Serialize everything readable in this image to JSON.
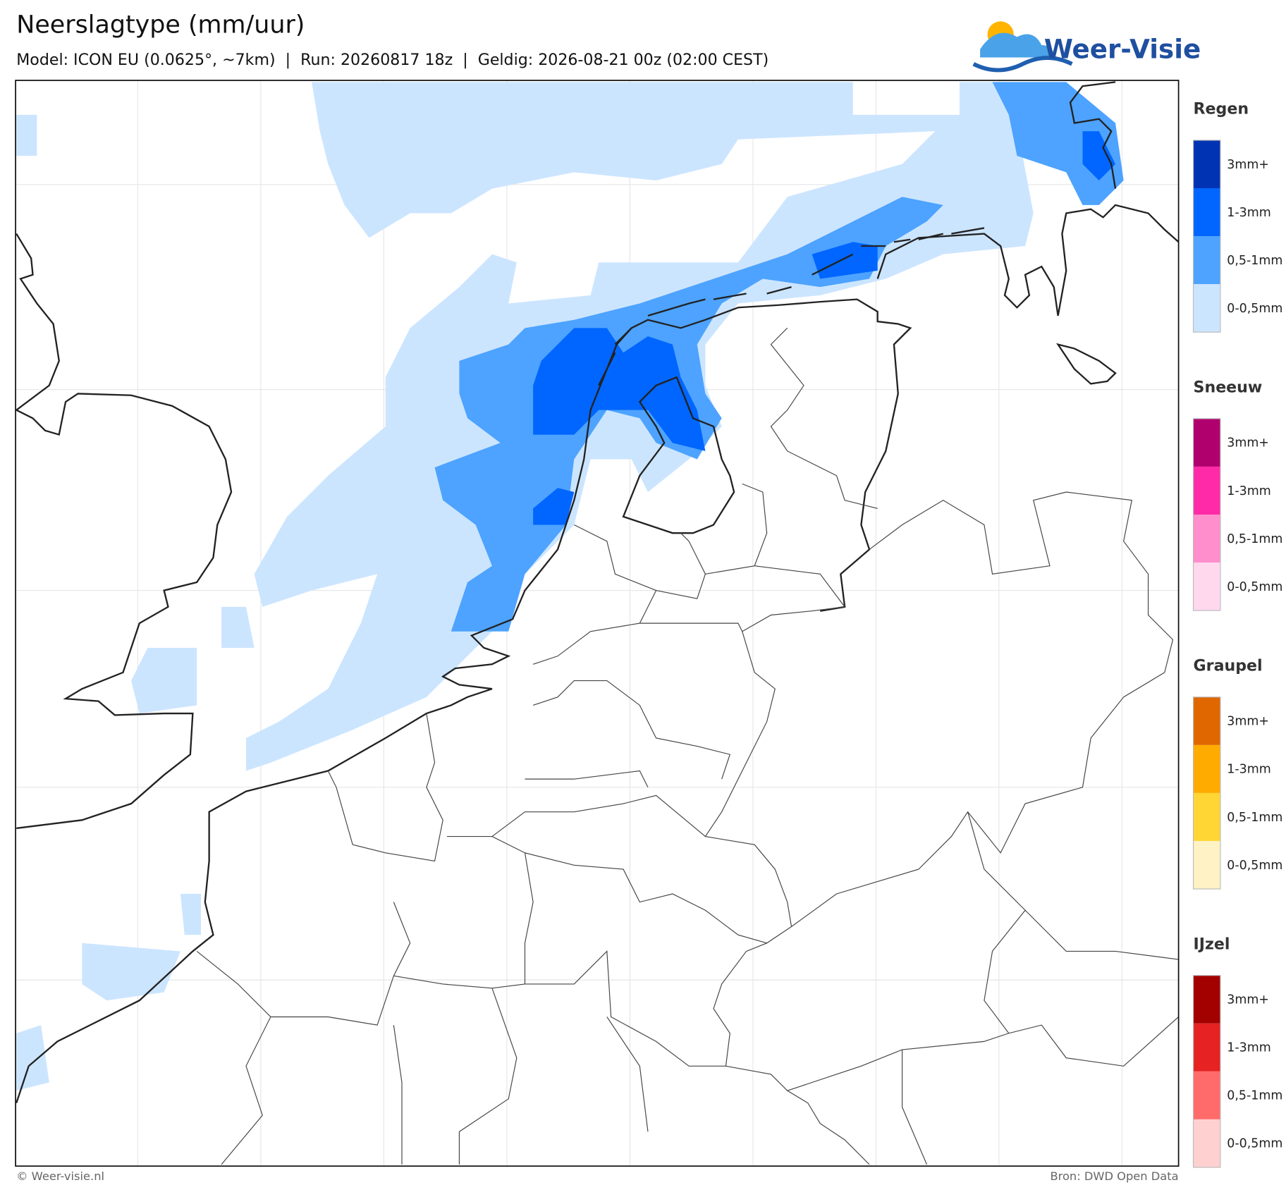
{
  "header": {
    "title": "Neerslagtype (mm/uur)",
    "subtitle": "Model: ICON EU (0.0625°, ~7km)  |  Run: 20260817 18z  |  Geldig: 2026-08-21 00z (02:00 CEST)",
    "logo": "Weer-Visie"
  },
  "legend": [
    {
      "title": "Regen",
      "items": [
        {
          "label": "3mm+",
          "color": "#0033b3"
        },
        {
          "label": "1-3mm",
          "color": "#0066ff"
        },
        {
          "label": "0,5-1mm",
          "color": "#4da3ff"
        },
        {
          "label": "0-0,5mm",
          "color": "#cce5ff"
        }
      ]
    },
    {
      "title": "Sneeuw",
      "items": [
        {
          "label": "3mm+",
          "color": "#b0006e"
        },
        {
          "label": "1-3mm",
          "color": "#ff2aa8"
        },
        {
          "label": "0,5-1mm",
          "color": "#ff8fcc"
        },
        {
          "label": "0-0,5mm",
          "color": "#ffd8ee"
        }
      ]
    },
    {
      "title": "Graupel",
      "items": [
        {
          "label": "3mm+",
          "color": "#e06600"
        },
        {
          "label": "1-3mm",
          "color": "#ffab00"
        },
        {
          "label": "0,5-1mm",
          "color": "#ffd633"
        },
        {
          "label": "0-0,5mm",
          "color": "#fff2c4"
        }
      ]
    },
    {
      "title": "IJzel",
      "items": [
        {
          "label": "3mm+",
          "color": "#a30000"
        },
        {
          "label": "1-3mm",
          "color": "#e62222"
        },
        {
          "label": "0,5-1mm",
          "color": "#ff6b6b"
        },
        {
          "label": "0-0,5mm",
          "color": "#ffd0d0"
        }
      ]
    }
  ],
  "footer": {
    "left": "© Weer-visie.nl",
    "right": "Bron: DWD Open Data"
  }
}
